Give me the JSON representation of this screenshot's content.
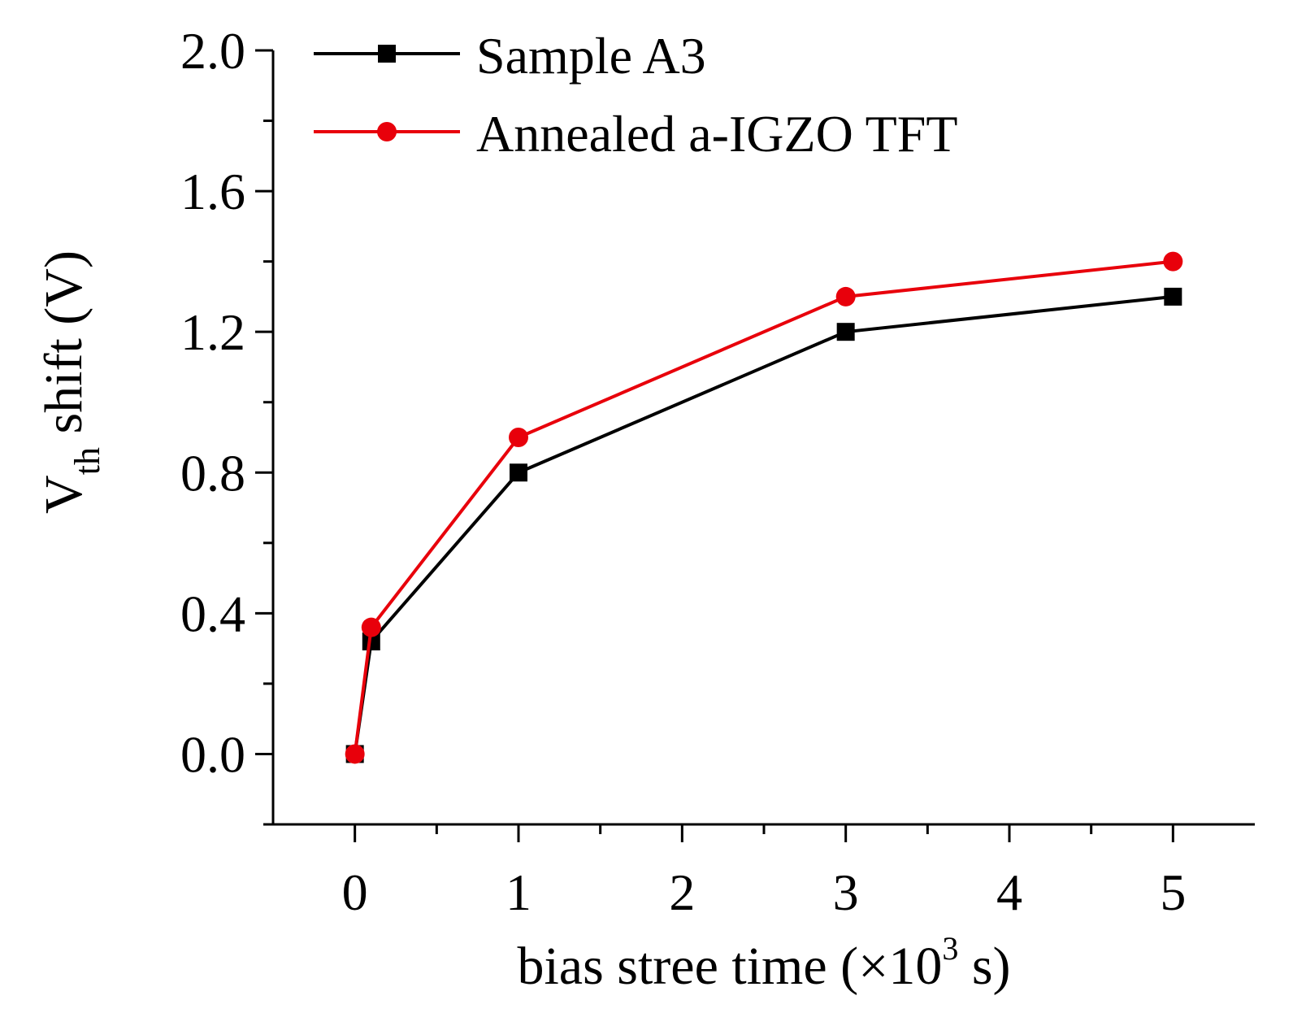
{
  "chart_data": {
    "type": "line",
    "title": "",
    "xlabel": "bias stree time (×10",
    "xlabel_superscript": "3",
    "xlabel_suffix": " s)",
    "ylabel_main": "V",
    "ylabel_subscript": "th",
    "ylabel_suffix": " shift (V)",
    "xlim": [
      -0.5,
      5.5
    ],
    "ylim": [
      -0.2,
      2.0
    ],
    "x_ticks": [
      0,
      1,
      2,
      3,
      4,
      5
    ],
    "x_tick_labels": [
      "0",
      "1",
      "2",
      "3",
      "4",
      "5"
    ],
    "y_ticks": [
      0.0,
      0.4,
      0.8,
      1.2,
      1.6,
      2.0
    ],
    "y_tick_labels": [
      "0.0",
      "0.4",
      "0.8",
      "1.2",
      "1.6",
      "2.0"
    ],
    "legend_position": "top-left",
    "series": [
      {
        "name": "Sample A3",
        "color": "#000000",
        "marker": "square",
        "x": [
          0,
          0.1,
          1,
          3,
          5
        ],
        "y": [
          0.0,
          0.32,
          0.8,
          1.2,
          1.3
        ]
      },
      {
        "name": "Annealed a-IGZO TFT",
        "color": "#e8000b",
        "marker": "circle",
        "x": [
          0,
          0.1,
          1,
          3,
          5
        ],
        "y": [
          0.0,
          0.36,
          0.9,
          1.3,
          1.4
        ]
      }
    ]
  }
}
